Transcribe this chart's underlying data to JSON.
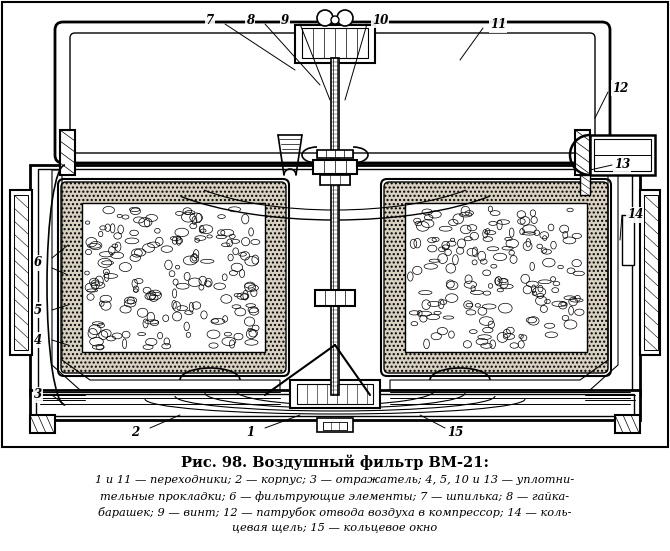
{
  "title": "Рис. 98. Воздушный фильтр ВМ-21:",
  "caption_line1": "1 и 11 — переходники; 2 — корпус; 3 — отражатель; 4, 5, 10 и 13 — уплотни-",
  "caption_line2": "тельные прокладки; 6 — фильтрующие элементы; 7 — шпилька; 8 — гайка-",
  "caption_line3": "барашек; 9 — винт; 12 — патрубок отвода воздуха в компрессор; 14 — коль-",
  "caption_line4": "цевая щель; 15 — кольцевое окно",
  "bg_color": "#ffffff",
  "line_color": "#000000",
  "hatch_color": "#000000",
  "label_color": "#000000",
  "fill_light": "#f0ede8",
  "fill_mesh": "#d8d0c0"
}
